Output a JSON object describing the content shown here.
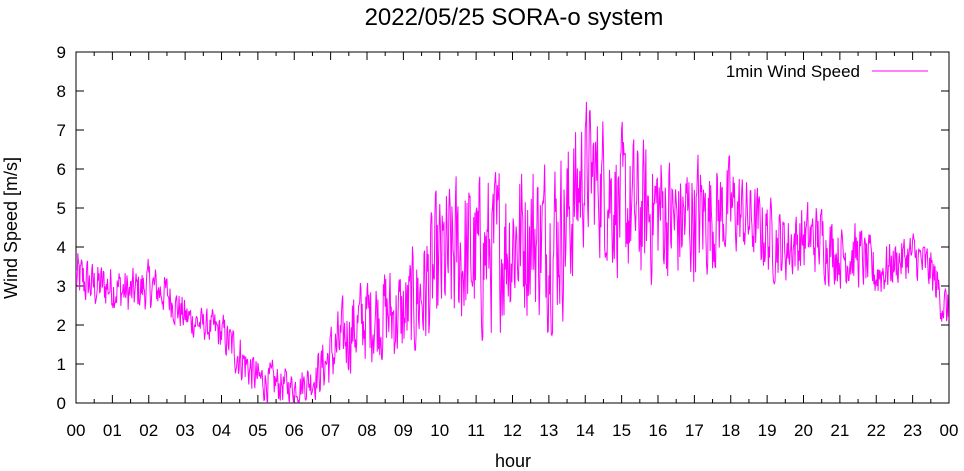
{
  "chart_data": {
    "type": "line",
    "title": "2022/05/25 SORA-o system",
    "xlabel": "hour",
    "ylabel": "Wind Speed [m/s]",
    "xlim": [
      0,
      24
    ],
    "ylim": [
      0,
      9
    ],
    "x_ticks": [
      "00",
      "01",
      "02",
      "03",
      "04",
      "05",
      "06",
      "07",
      "08",
      "09",
      "10",
      "11",
      "12",
      "13",
      "14",
      "15",
      "16",
      "17",
      "18",
      "19",
      "20",
      "21",
      "22",
      "23",
      "00"
    ],
    "y_ticks": [
      0,
      1,
      2,
      3,
      4,
      5,
      6,
      7,
      8,
      9
    ],
    "grid": false,
    "legend_position": "top-right",
    "series": [
      {
        "name": "1min Wind Speed",
        "color": "#ff00ff",
        "sampling": "1 minute",
        "trend_hourly": {
          "hour": [
            0,
            0.5,
            1,
            1.5,
            2,
            2.5,
            3,
            3.5,
            4,
            4.5,
            5,
            5.5,
            6,
            6.5,
            7,
            7.5,
            8,
            8.5,
            9,
            9.5,
            10,
            10.5,
            11,
            11.5,
            12,
            12.5,
            13,
            13.5,
            14,
            14.5,
            15,
            15.5,
            16,
            16.5,
            17,
            17.5,
            18,
            18.5,
            19,
            19.5,
            20,
            20.5,
            21,
            21.5,
            22,
            22.5,
            23,
            23.5,
            24
          ],
          "mean": [
            3.2,
            3.0,
            3.0,
            2.8,
            3.0,
            2.8,
            2.2,
            2.0,
            1.8,
            1.2,
            0.6,
            0.5,
            0.4,
            0.6,
            1.2,
            1.8,
            2.2,
            2.3,
            2.2,
            2.8,
            3.4,
            3.8,
            3.7,
            3.9,
            4.2,
            4.3,
            4.2,
            4.6,
            6.0,
            5.6,
            5.0,
            4.8,
            5.0,
            4.6,
            4.8,
            4.8,
            5.0,
            4.7,
            4.3,
            4.0,
            4.2,
            4.2,
            3.8,
            3.8,
            3.3,
            3.6,
            3.8,
            3.4,
            2.2
          ],
          "amplitude": [
            0.7,
            0.6,
            0.6,
            0.6,
            0.6,
            0.5,
            0.5,
            0.4,
            0.5,
            0.6,
            0.5,
            0.5,
            0.4,
            0.5,
            0.8,
            1.0,
            1.1,
            1.2,
            1.2,
            1.6,
            1.9,
            2.0,
            2.0,
            2.0,
            2.0,
            2.0,
            2.1,
            2.1,
            1.7,
            1.8,
            1.8,
            1.8,
            1.7,
            1.6,
            1.6,
            1.4,
            1.2,
            1.0,
            1.0,
            0.9,
            0.9,
            0.9,
            0.8,
            0.8,
            0.7,
            0.6,
            0.6,
            0.6,
            0.6
          ]
        }
      }
    ]
  }
}
